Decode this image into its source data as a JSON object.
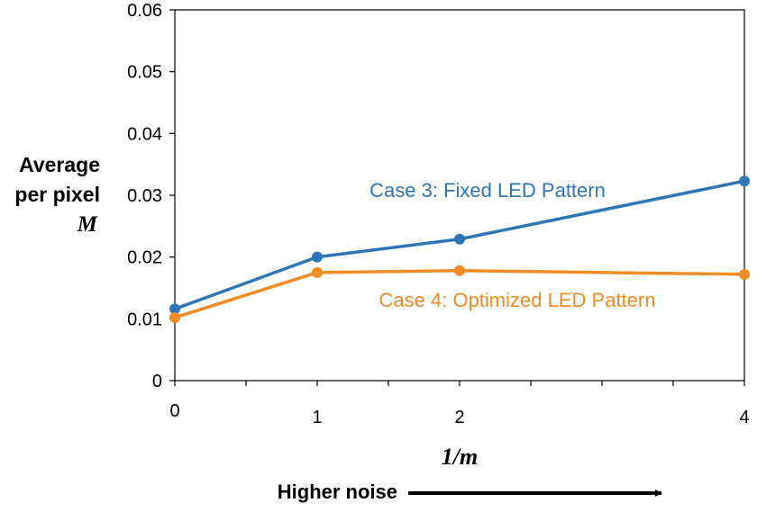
{
  "chart_data": {
    "type": "line",
    "x": [
      0,
      1,
      2,
      4
    ],
    "xticks": [
      "0",
      "1",
      "2",
      "4"
    ],
    "yticks": [
      "0",
      "0.01",
      "0.02",
      "0.03",
      "0.04",
      "0.05",
      "0.06"
    ],
    "xlim": [
      0,
      4
    ],
    "ylim": [
      0,
      0.06
    ],
    "grid": false,
    "series": [
      {
        "name": "Case 3: Fixed LED Pattern",
        "color": "#2e75b6",
        "values": [
          0.0116,
          0.02,
          0.0229,
          0.0323
        ]
      },
      {
        "name": "Case 4: Optimized LED Pattern",
        "color": "#f28b24",
        "values": [
          0.0102,
          0.0175,
          0.0178,
          0.0172
        ]
      }
    ],
    "ylabel": {
      "line1": "Average",
      "line2": "per pixel",
      "line3": "M"
    },
    "xlabel": "1/m",
    "note": "Higher noise"
  }
}
